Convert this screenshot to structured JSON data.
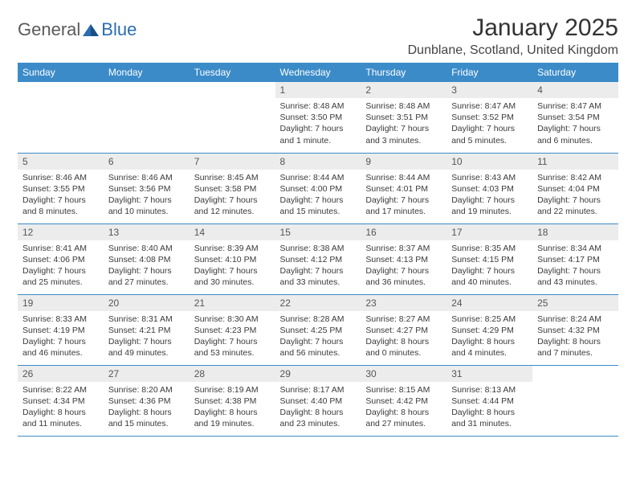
{
  "logo": {
    "general": "General",
    "blue": "Blue"
  },
  "title": "January 2025",
  "location": "Dunblane, Scotland, United Kingdom",
  "colors": {
    "header_bg": "#3b8bc8",
    "header_text": "#ffffff",
    "daynum_bg": "#ececec",
    "border": "#3b8bc8",
    "logo_gray": "#5a5a5a",
    "logo_blue": "#2a6db0",
    "body_bg": "#ffffff",
    "text": "#333333"
  },
  "weekdays": [
    "Sunday",
    "Monday",
    "Tuesday",
    "Wednesday",
    "Thursday",
    "Friday",
    "Saturday"
  ],
  "weeks": [
    [
      null,
      null,
      null,
      {
        "n": "1",
        "sr": "Sunrise: 8:48 AM",
        "ss": "Sunset: 3:50 PM",
        "dl": "Daylight: 7 hours and 1 minute."
      },
      {
        "n": "2",
        "sr": "Sunrise: 8:48 AM",
        "ss": "Sunset: 3:51 PM",
        "dl": "Daylight: 7 hours and 3 minutes."
      },
      {
        "n": "3",
        "sr": "Sunrise: 8:47 AM",
        "ss": "Sunset: 3:52 PM",
        "dl": "Daylight: 7 hours and 5 minutes."
      },
      {
        "n": "4",
        "sr": "Sunrise: 8:47 AM",
        "ss": "Sunset: 3:54 PM",
        "dl": "Daylight: 7 hours and 6 minutes."
      }
    ],
    [
      {
        "n": "5",
        "sr": "Sunrise: 8:46 AM",
        "ss": "Sunset: 3:55 PM",
        "dl": "Daylight: 7 hours and 8 minutes."
      },
      {
        "n": "6",
        "sr": "Sunrise: 8:46 AM",
        "ss": "Sunset: 3:56 PM",
        "dl": "Daylight: 7 hours and 10 minutes."
      },
      {
        "n": "7",
        "sr": "Sunrise: 8:45 AM",
        "ss": "Sunset: 3:58 PM",
        "dl": "Daylight: 7 hours and 12 minutes."
      },
      {
        "n": "8",
        "sr": "Sunrise: 8:44 AM",
        "ss": "Sunset: 4:00 PM",
        "dl": "Daylight: 7 hours and 15 minutes."
      },
      {
        "n": "9",
        "sr": "Sunrise: 8:44 AM",
        "ss": "Sunset: 4:01 PM",
        "dl": "Daylight: 7 hours and 17 minutes."
      },
      {
        "n": "10",
        "sr": "Sunrise: 8:43 AM",
        "ss": "Sunset: 4:03 PM",
        "dl": "Daylight: 7 hours and 19 minutes."
      },
      {
        "n": "11",
        "sr": "Sunrise: 8:42 AM",
        "ss": "Sunset: 4:04 PM",
        "dl": "Daylight: 7 hours and 22 minutes."
      }
    ],
    [
      {
        "n": "12",
        "sr": "Sunrise: 8:41 AM",
        "ss": "Sunset: 4:06 PM",
        "dl": "Daylight: 7 hours and 25 minutes."
      },
      {
        "n": "13",
        "sr": "Sunrise: 8:40 AM",
        "ss": "Sunset: 4:08 PM",
        "dl": "Daylight: 7 hours and 27 minutes."
      },
      {
        "n": "14",
        "sr": "Sunrise: 8:39 AM",
        "ss": "Sunset: 4:10 PM",
        "dl": "Daylight: 7 hours and 30 minutes."
      },
      {
        "n": "15",
        "sr": "Sunrise: 8:38 AM",
        "ss": "Sunset: 4:12 PM",
        "dl": "Daylight: 7 hours and 33 minutes."
      },
      {
        "n": "16",
        "sr": "Sunrise: 8:37 AM",
        "ss": "Sunset: 4:13 PM",
        "dl": "Daylight: 7 hours and 36 minutes."
      },
      {
        "n": "17",
        "sr": "Sunrise: 8:35 AM",
        "ss": "Sunset: 4:15 PM",
        "dl": "Daylight: 7 hours and 40 minutes."
      },
      {
        "n": "18",
        "sr": "Sunrise: 8:34 AM",
        "ss": "Sunset: 4:17 PM",
        "dl": "Daylight: 7 hours and 43 minutes."
      }
    ],
    [
      {
        "n": "19",
        "sr": "Sunrise: 8:33 AM",
        "ss": "Sunset: 4:19 PM",
        "dl": "Daylight: 7 hours and 46 minutes."
      },
      {
        "n": "20",
        "sr": "Sunrise: 8:31 AM",
        "ss": "Sunset: 4:21 PM",
        "dl": "Daylight: 7 hours and 49 minutes."
      },
      {
        "n": "21",
        "sr": "Sunrise: 8:30 AM",
        "ss": "Sunset: 4:23 PM",
        "dl": "Daylight: 7 hours and 53 minutes."
      },
      {
        "n": "22",
        "sr": "Sunrise: 8:28 AM",
        "ss": "Sunset: 4:25 PM",
        "dl": "Daylight: 7 hours and 56 minutes."
      },
      {
        "n": "23",
        "sr": "Sunrise: 8:27 AM",
        "ss": "Sunset: 4:27 PM",
        "dl": "Daylight: 8 hours and 0 minutes."
      },
      {
        "n": "24",
        "sr": "Sunrise: 8:25 AM",
        "ss": "Sunset: 4:29 PM",
        "dl": "Daylight: 8 hours and 4 minutes."
      },
      {
        "n": "25",
        "sr": "Sunrise: 8:24 AM",
        "ss": "Sunset: 4:32 PM",
        "dl": "Daylight: 8 hours and 7 minutes."
      }
    ],
    [
      {
        "n": "26",
        "sr": "Sunrise: 8:22 AM",
        "ss": "Sunset: 4:34 PM",
        "dl": "Daylight: 8 hours and 11 minutes."
      },
      {
        "n": "27",
        "sr": "Sunrise: 8:20 AM",
        "ss": "Sunset: 4:36 PM",
        "dl": "Daylight: 8 hours and 15 minutes."
      },
      {
        "n": "28",
        "sr": "Sunrise: 8:19 AM",
        "ss": "Sunset: 4:38 PM",
        "dl": "Daylight: 8 hours and 19 minutes."
      },
      {
        "n": "29",
        "sr": "Sunrise: 8:17 AM",
        "ss": "Sunset: 4:40 PM",
        "dl": "Daylight: 8 hours and 23 minutes."
      },
      {
        "n": "30",
        "sr": "Sunrise: 8:15 AM",
        "ss": "Sunset: 4:42 PM",
        "dl": "Daylight: 8 hours and 27 minutes."
      },
      {
        "n": "31",
        "sr": "Sunrise: 8:13 AM",
        "ss": "Sunset: 4:44 PM",
        "dl": "Daylight: 8 hours and 31 minutes."
      },
      null
    ]
  ]
}
